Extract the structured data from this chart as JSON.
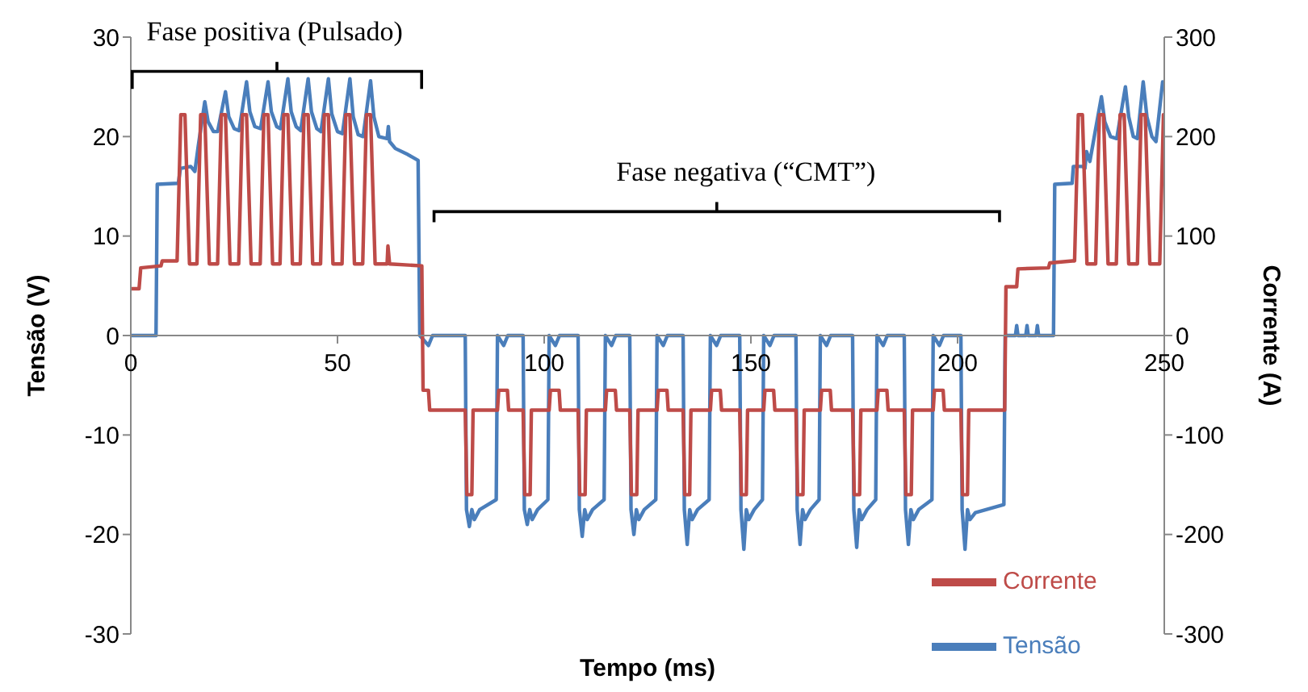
{
  "chart_data": {
    "type": "line",
    "xlabel": "Tempo (ms)",
    "ylabel": "Tensão (V)",
    "y2label": "Corrente (A)",
    "xlim": [
      0,
      250
    ],
    "xticks": [
      0,
      50,
      100,
      150,
      200,
      250
    ],
    "ylim": [
      -30,
      30
    ],
    "yticks": [
      -30,
      -20,
      -10,
      0,
      10,
      20,
      30
    ],
    "y2lim": [
      -300,
      300
    ],
    "y2ticks": [
      -300,
      -200,
      -100,
      0,
      100,
      200,
      300
    ],
    "legend": "bottom right",
    "marker": "none",
    "line_style": "solid",
    "annotations": [
      "Fase positiva (Pulsado)",
      "Fase negativa (“CMT”)"
    ],
    "series": [
      {
        "name": "Tensão",
        "color": "#4a7ebb",
        "x": [
          0,
          6.1,
          6.4,
          11.5,
          12,
          14.5,
          15.5,
          16.3,
          17.9,
          18.7,
          20,
          21,
          22.9,
          23.7,
          25,
          26.2,
          28,
          28.8,
          30,
          31.4,
          33.2,
          34,
          35.3,
          36.2,
          38,
          38.8,
          40,
          41.1,
          42.9,
          43.7,
          45,
          46,
          47.8,
          48.6,
          50,
          51.2,
          53,
          53.8,
          55,
          56.2,
          58,
          58.8,
          60,
          62,
          62.3,
          62.6,
          64,
          67,
          69.5,
          69.9,
          72,
          73,
          80.9,
          81.2,
          81.9,
          82.5,
          83.1,
          84.4,
          88.4,
          88.7,
          90.2,
          91.2,
          94.9,
          95.2,
          95.9,
          96.5,
          97.1,
          98.4,
          100.9,
          101.2,
          102.7,
          103.7,
          108.2,
          108.5,
          109.2,
          109.8,
          110.4,
          111.7,
          114.5,
          114.8,
          116.3,
          117.3,
          120.7,
          121,
          121.7,
          122.3,
          122.9,
          124.2,
          127,
          127.3,
          128.8,
          129.8,
          133.6,
          133.9,
          134.6,
          135.2,
          135.8,
          137.1,
          139.9,
          140.2,
          141.7,
          142.7,
          147.3,
          147.6,
          148.3,
          148.9,
          149.5,
          150.8,
          152.8,
          153.1,
          154.6,
          155.6,
          160.9,
          161.2,
          161.9,
          162.5,
          163.1,
          164.4,
          166.5,
          166.8,
          168.3,
          169.3,
          174.6,
          174.9,
          175.6,
          176.2,
          176.8,
          178.1,
          180.2,
          180.5,
          182,
          183,
          187.1,
          187.4,
          188.1,
          188.7,
          189.3,
          190.6,
          193.8,
          194.1,
          195.6,
          196.6,
          200.8,
          201.1,
          201.8,
          202.4,
          203,
          204.3,
          211.2,
          211.5,
          214,
          214.3,
          214.6,
          216.5,
          216.8,
          217.1,
          219,
          219.3,
          219.6,
          223.2,
          223.5,
          227.7,
          228,
          230.3,
          230.8,
          231.2,
          232,
          233.5,
          234.8,
          235.6,
          237,
          238.5,
          240.6,
          241.4,
          242.5,
          243.5,
          244.9,
          245.8,
          247,
          248,
          249.6,
          250
        ],
        "values": [
          0,
          0,
          15.2,
          15.3,
          16.8,
          17,
          16.5,
          19,
          23.5,
          21.5,
          20.5,
          20.5,
          24.5,
          22,
          20.8,
          20.6,
          25.5,
          22.5,
          21,
          20.8,
          25.5,
          22.5,
          21,
          20.8,
          25.8,
          22.5,
          21,
          20.6,
          25.8,
          22.5,
          20.8,
          20.5,
          25.8,
          22.3,
          20.5,
          20.3,
          25.8,
          22,
          20.2,
          20,
          25.6,
          22,
          20,
          19.8,
          21,
          19.5,
          18.8,
          18.2,
          17.6,
          0,
          -1,
          0,
          0,
          -17.5,
          -19.2,
          -17.5,
          -18.5,
          -17.5,
          -16.5,
          0,
          -1,
          0,
          0,
          -17.5,
          -19,
          -17.5,
          -18.5,
          -17.5,
          -16.5,
          0,
          -1,
          0,
          0,
          -17.5,
          -20.2,
          -17.5,
          -18.5,
          -17.5,
          -16.5,
          0,
          -1,
          0,
          0,
          -17.5,
          -20,
          -17.5,
          -18.5,
          -17.5,
          -16.5,
          0,
          -1,
          0,
          0,
          -17.5,
          -21,
          -17.5,
          -18.5,
          -17.5,
          -16.5,
          0,
          -1,
          0,
          0,
          -17.5,
          -21.5,
          -17.5,
          -18.5,
          -17.5,
          -16.5,
          0,
          -1,
          0,
          0,
          -17.5,
          -21,
          -17.5,
          -18.5,
          -17.5,
          -16.5,
          0,
          -1,
          0,
          0,
          -17.5,
          -21.3,
          -17.5,
          -18.5,
          -17.5,
          -16.5,
          0,
          -1,
          0,
          0,
          -17.5,
          -21,
          -17.5,
          -18.5,
          -17.5,
          -16.5,
          0,
          -1,
          0,
          0,
          -17.5,
          -21.5,
          -17.5,
          -18.5,
          -17.8,
          -17,
          0,
          0,
          1,
          0,
          0,
          1,
          0,
          0,
          1,
          0,
          0,
          15.2,
          15.3,
          17,
          17,
          16.8,
          18.5,
          17.5,
          21,
          24,
          21.5,
          20,
          19.8,
          25,
          22,
          20,
          19.8,
          25.5,
          22,
          20,
          19.5,
          25.5,
          25
        ]
      },
      {
        "name": "Corrente",
        "color": "#be4b48",
        "axis": "y2",
        "x": [
          0,
          2,
          2.4,
          7.3,
          7.6,
          11.2,
          12.1,
          13.1,
          14.2,
          16,
          16.9,
          17.9,
          19,
          21,
          21.9,
          22.9,
          24,
          26.1,
          27,
          28,
          29.1,
          31.3,
          32.2,
          33.2,
          34.3,
          36.1,
          37,
          38,
          39.1,
          41,
          41.9,
          42.9,
          44,
          45.9,
          46.8,
          47.8,
          48.9,
          51.1,
          52,
          53,
          54.1,
          56.1,
          57,
          58,
          59.1,
          62,
          62.2,
          62.6,
          70.4,
          70.7,
          72,
          72.3,
          80.9,
          81.3,
          82.5,
          82.8,
          88.7,
          89,
          91.1,
          91.4,
          94.9,
          95.3,
          96.6,
          96.9,
          101.2,
          101.5,
          103.6,
          103.9,
          108.2,
          108.6,
          109.9,
          110.2,
          114.8,
          115.1,
          117.2,
          117.5,
          120.7,
          121.1,
          122.4,
          122.7,
          127.3,
          127.6,
          129.7,
          130,
          133.6,
          134,
          135.2,
          135.5,
          140.2,
          140.5,
          142.6,
          142.9,
          147.3,
          147.7,
          148.9,
          149.2,
          153.1,
          153.4,
          155.5,
          155.8,
          160.9,
          161.3,
          162.6,
          162.9,
          166.8,
          167.1,
          169.2,
          169.5,
          174.6,
          175,
          176.3,
          176.6,
          180.5,
          180.8,
          182.9,
          183.2,
          187.1,
          187.5,
          188.8,
          189.1,
          194.1,
          194.4,
          196.5,
          196.8,
          200.8,
          201.2,
          202.4,
          202.7,
          211.4,
          211.7,
          214.3,
          214.6,
          222,
          222.3,
          227.8,
          228.3,
          229.2,
          230.2,
          231.3,
          233.4,
          234.3,
          235.3,
          236.4,
          238.4,
          239.3,
          240.3,
          241.4,
          243.5,
          244.4,
          245.4,
          246.5,
          248.9,
          249.8,
          250
        ],
        "values": [
          47,
          47,
          68,
          70,
          75,
          75,
          222,
          222,
          72,
          72,
          222,
          222,
          72,
          72,
          222,
          222,
          72,
          72,
          222,
          222,
          72,
          72,
          222,
          222,
          72,
          72,
          222,
          222,
          72,
          72,
          222,
          222,
          72,
          72,
          222,
          222,
          72,
          72,
          222,
          222,
          72,
          72,
          222,
          222,
          72,
          72,
          90,
          72,
          70,
          -55,
          -55,
          -75,
          -75,
          -160,
          -160,
          -75,
          -75,
          -55,
          -55,
          -75,
          -75,
          -160,
          -160,
          -75,
          -75,
          -55,
          -55,
          -75,
          -75,
          -160,
          -160,
          -75,
          -75,
          -55,
          -55,
          -75,
          -75,
          -160,
          -160,
          -75,
          -75,
          -55,
          -55,
          -75,
          -75,
          -160,
          -160,
          -75,
          -75,
          -55,
          -55,
          -75,
          -75,
          -160,
          -160,
          -75,
          -75,
          -55,
          -55,
          -75,
          -75,
          -160,
          -160,
          -75,
          -75,
          -55,
          -55,
          -75,
          -75,
          -160,
          -160,
          -75,
          -75,
          -55,
          -55,
          -75,
          -75,
          -160,
          -160,
          -75,
          -75,
          -55,
          -55,
          -75,
          -75,
          -160,
          -160,
          -75,
          -75,
          49,
          49,
          67,
          68,
          73,
          75,
          75,
          222,
          222,
          72,
          72,
          222,
          222,
          72,
          72,
          222,
          222,
          72,
          72,
          222,
          222,
          72,
          72,
          222,
          222
        ]
      }
    ]
  }
}
